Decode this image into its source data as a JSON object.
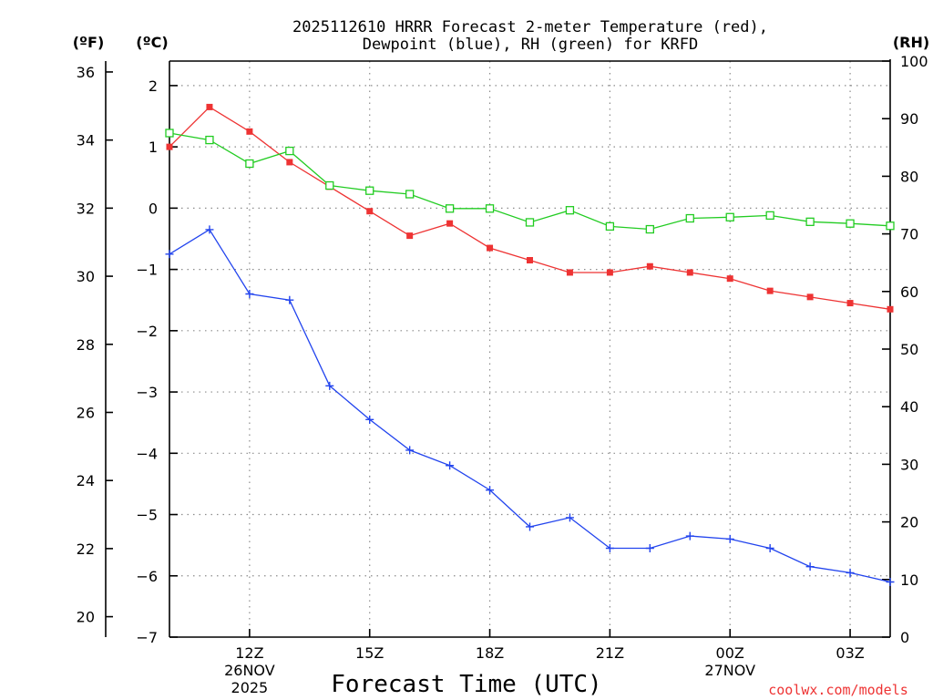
{
  "chart_data": {
    "type": "line",
    "title_line1": "2025112610 HRRR Forecast 2-meter Temperature (red),",
    "title_line2": "Dewpoint (blue), RH (green) for KRFD",
    "xlabel": "Forecast Time (UTC)",
    "credit": "coolwx.com/models",
    "units": {
      "fahrenheit": "(ºF)",
      "celsius": "(ºC)",
      "rh": "(RH)"
    },
    "forecast_hours": [
      10,
      11,
      12,
      13,
      14,
      15,
      16,
      17,
      18,
      19,
      20,
      21,
      22,
      23,
      24,
      25,
      26,
      27,
      28
    ],
    "x_ticks": [
      {
        "hour": 12,
        "label": "12Z",
        "date": "26NOV",
        "year": "2025"
      },
      {
        "hour": 15,
        "label": "15Z",
        "date": "",
        "year": ""
      },
      {
        "hour": 18,
        "label": "18Z",
        "date": "",
        "year": ""
      },
      {
        "hour": 21,
        "label": "21Z",
        "date": "",
        "year": ""
      },
      {
        "hour": 24,
        "label": "00Z",
        "date": "27NOV",
        "year": ""
      },
      {
        "hour": 27,
        "label": "03Z",
        "date": "",
        "year": ""
      }
    ],
    "celsius_axis": {
      "min": -7,
      "max": 2.4,
      "ticks": [
        -7,
        -6,
        -5,
        -4,
        -3,
        -2,
        -1,
        0,
        1,
        2
      ]
    },
    "fahrenheit_axis": {
      "ticks": [
        20,
        22,
        24,
        26,
        28,
        30,
        32,
        34,
        36
      ]
    },
    "rh_axis": {
      "min": 0,
      "max": 100,
      "ticks": [
        0,
        10,
        20,
        30,
        40,
        50,
        60,
        70,
        80,
        90,
        100
      ]
    },
    "series": [
      {
        "name": "2-meter Temperature",
        "color": "#ee3333",
        "axis": "celsius",
        "marker": "filled-square",
        "values": [
          1.0,
          1.65,
          1.25,
          0.75,
          0.35,
          -0.05,
          -0.45,
          -0.25,
          -0.65,
          -0.85,
          -1.05,
          -1.05,
          -0.95,
          -1.05,
          -1.15,
          -1.35,
          -1.45,
          -1.55,
          -1.65
        ]
      },
      {
        "name": "Dewpoint",
        "color": "#2244ee",
        "axis": "celsius",
        "marker": "plus",
        "values": [
          -0.75,
          -0.35,
          -1.4,
          -1.5,
          -2.9,
          -3.45,
          -3.95,
          -4.2,
          -4.6,
          -5.2,
          -5.05,
          -5.55,
          -5.55,
          -5.35,
          -5.4,
          -5.55,
          -5.85,
          -5.95,
          -6.1
        ]
      },
      {
        "name": "Relative Humidity",
        "color": "#22cc22",
        "axis": "rh",
        "marker": "open-square",
        "values": [
          87.5,
          86.3,
          82.2,
          84.4,
          78.4,
          77.5,
          76.9,
          74.4,
          74.4,
          72.0,
          74.1,
          71.3,
          70.8,
          72.7,
          72.9,
          73.2,
          72.1,
          71.8,
          71.4
        ]
      }
    ]
  }
}
